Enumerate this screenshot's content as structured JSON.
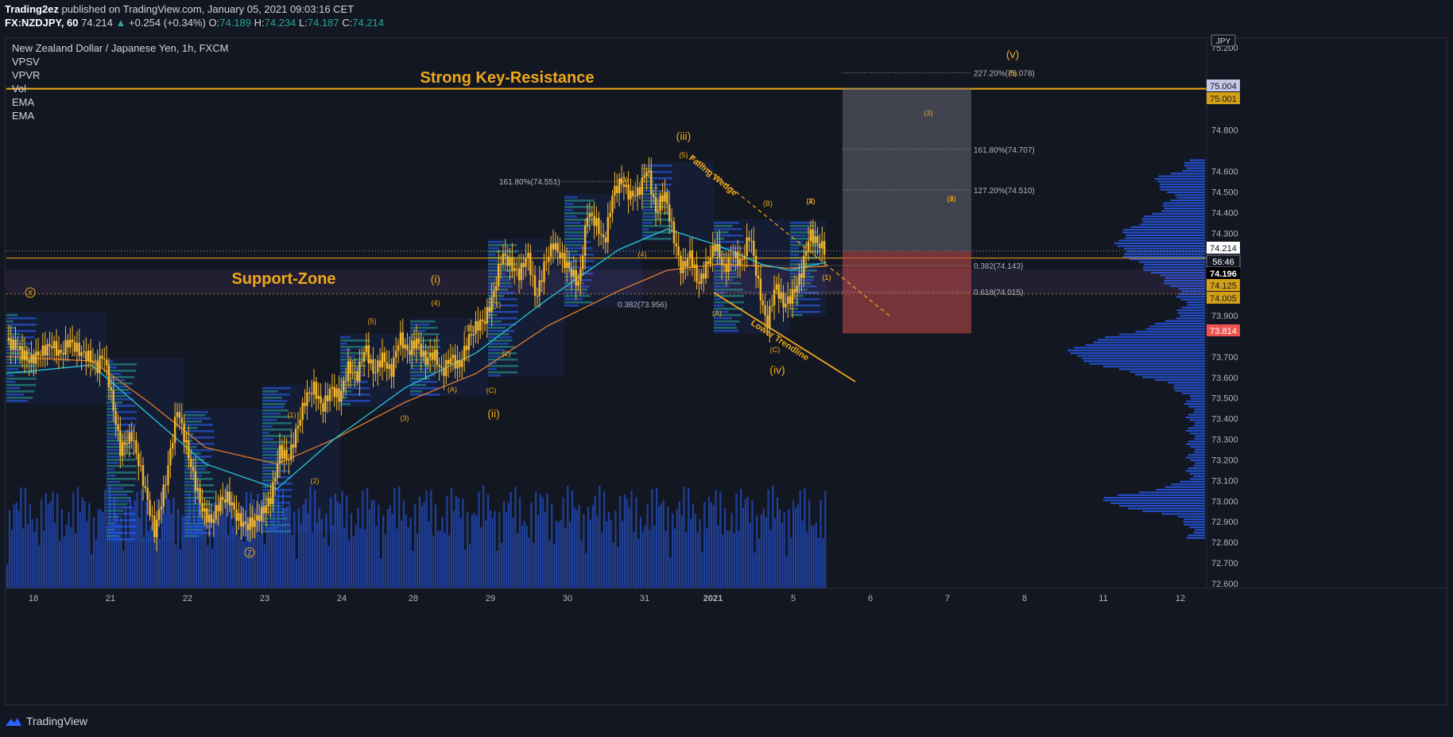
{
  "header": {
    "publisher": "Trading2ez",
    "published_text": "published on TradingView.com, January 05, 2021 09:03:16 CET",
    "symbol": "FX:NZDJPY, 60",
    "last": "74.214",
    "change": "+0.254 (+0.34%)",
    "open_label": "O:",
    "open": "74.189",
    "high_label": "H:",
    "high": "74.234",
    "low_label": "L:",
    "low": "74.187",
    "close_label": "C:",
    "close": "74.214"
  },
  "legend": {
    "title": "New Zealand Dollar / Japanese Yen, 1h, FXCM",
    "indicators": [
      "VPSV",
      "VPVR",
      "Vol",
      "EMA",
      "EMA"
    ]
  },
  "footer": {
    "brand": "TradingView"
  },
  "currency_label": "JPY",
  "colors": {
    "background": "#131722",
    "accent": "#f0a818",
    "candle": "#f5b72c",
    "volume": "#2962ff",
    "ema_fast": "#26c6da",
    "ema_slow": "#e0792b",
    "target_box": "#787b86",
    "stop_box": "#b54848",
    "current_price": "#ffffff",
    "stop_price": "#ef5350"
  },
  "chart_data": {
    "type": "line",
    "title": "New Zealand Dollar / Japanese Yen, 1h, FXCM",
    "y_range": [
      72.6,
      75.2
    ],
    "y_ticks": [
      {
        "value": 75.2,
        "label": "75.200"
      },
      {
        "value": 74.8,
        "label": "74.800"
      },
      {
        "value": 74.6,
        "label": "74.600"
      },
      {
        "value": 74.5,
        "label": "74.500"
      },
      {
        "value": 74.4,
        "label": "74.400"
      },
      {
        "value": 74.3,
        "label": "74.300"
      },
      {
        "value": 73.9,
        "label": "73.900"
      },
      {
        "value": 73.7,
        "label": "73.700"
      },
      {
        "value": 73.6,
        "label": "73.600"
      },
      {
        "value": 73.5,
        "label": "73.500"
      },
      {
        "value": 73.4,
        "label": "73.400"
      },
      {
        "value": 73.3,
        "label": "73.300"
      },
      {
        "value": 73.2,
        "label": "73.200"
      },
      {
        "value": 73.1,
        "label": "73.100"
      },
      {
        "value": 73.0,
        "label": "73.000"
      },
      {
        "value": 72.9,
        "label": "72.900"
      },
      {
        "value": 72.8,
        "label": "72.800"
      },
      {
        "value": 72.7,
        "label": "72.700"
      },
      {
        "value": 72.6,
        "label": "72.600"
      }
    ],
    "x_ticks": [
      "18",
      "21",
      "22",
      "23",
      "24",
      "28",
      "29",
      "30",
      "31",
      "2021",
      "5",
      "6",
      "7",
      "8",
      "11",
      "12"
    ],
    "price_badges": [
      {
        "value": 75.004,
        "label": "75.004",
        "style": "lavender"
      },
      {
        "value": 75.001,
        "label": "75.001",
        "style": "gold"
      },
      {
        "value": 74.214,
        "label": "74.214",
        "style": "white"
      },
      {
        "value": 74.18,
        "label": "56:46",
        "style": "countdown"
      },
      {
        "value": 74.196,
        "label": "74.196",
        "style": "dark"
      },
      {
        "value": 74.125,
        "label": "74.125",
        "style": "gold"
      },
      {
        "value": 74.005,
        "label": "74.005",
        "style": "gold"
      },
      {
        "value": 73.814,
        "label": "73.814",
        "style": "red"
      }
    ],
    "close_path": [
      {
        "x": 0,
        "y": 73.78
      },
      {
        "x": 4,
        "y": 73.74
      },
      {
        "x": 8,
        "y": 73.68
      },
      {
        "x": 12,
        "y": 73.72
      },
      {
        "x": 16,
        "y": 73.76
      },
      {
        "x": 19,
        "y": 73.71
      },
      {
        "x": 22,
        "y": 73.78
      },
      {
        "x": 26,
        "y": 73.72
      },
      {
        "x": 29,
        "y": 73.7
      },
      {
        "x": 32,
        "y": 73.65
      },
      {
        "x": 34,
        "y": 73.72
      },
      {
        "x": 36,
        "y": 73.58
      },
      {
        "x": 40,
        "y": 73.25
      },
      {
        "x": 44,
        "y": 73.32
      },
      {
        "x": 48,
        "y": 73.1
      },
      {
        "x": 52,
        "y": 72.85
      },
      {
        "x": 56,
        "y": 73.1
      },
      {
        "x": 60,
        "y": 73.45
      },
      {
        "x": 63,
        "y": 73.28
      },
      {
        "x": 66,
        "y": 73.1
      },
      {
        "x": 69,
        "y": 72.95
      },
      {
        "x": 72,
        "y": 72.9
      },
      {
        "x": 75,
        "y": 73.0
      },
      {
        "x": 78,
        "y": 73.02
      },
      {
        "x": 81,
        "y": 72.92
      },
      {
        "x": 84,
        "y": 72.88
      },
      {
        "x": 87,
        "y": 72.9
      },
      {
        "x": 90,
        "y": 72.95
      },
      {
        "x": 93,
        "y": 73.02
      },
      {
        "x": 96,
        "y": 73.25
      },
      {
        "x": 99,
        "y": 73.2
      },
      {
        "x": 102,
        "y": 73.35
      },
      {
        "x": 105,
        "y": 73.5
      },
      {
        "x": 108,
        "y": 73.55
      },
      {
        "x": 111,
        "y": 73.45
      },
      {
        "x": 114,
        "y": 73.55
      },
      {
        "x": 117,
        "y": 73.5
      },
      {
        "x": 120,
        "y": 73.65
      },
      {
        "x": 123,
        "y": 73.6
      },
      {
        "x": 126,
        "y": 73.75
      },
      {
        "x": 129,
        "y": 73.62
      },
      {
        "x": 132,
        "y": 73.7
      },
      {
        "x": 135,
        "y": 73.62
      },
      {
        "x": 138,
        "y": 73.8
      },
      {
        "x": 141,
        "y": 73.72
      },
      {
        "x": 144,
        "y": 73.78
      },
      {
        "x": 147,
        "y": 73.68
      },
      {
        "x": 150,
        "y": 73.72
      },
      {
        "x": 153,
        "y": 73.62
      },
      {
        "x": 156,
        "y": 73.7
      },
      {
        "x": 159,
        "y": 73.65
      },
      {
        "x": 162,
        "y": 73.78
      },
      {
        "x": 165,
        "y": 73.85
      },
      {
        "x": 168,
        "y": 73.88
      },
      {
        "x": 171,
        "y": 74.0
      },
      {
        "x": 174,
        "y": 74.2
      },
      {
        "x": 177,
        "y": 74.15
      },
      {
        "x": 180,
        "y": 74.1
      },
      {
        "x": 183,
        "y": 74.2
      },
      {
        "x": 186,
        "y": 73.98
      },
      {
        "x": 189,
        "y": 74.15
      },
      {
        "x": 192,
        "y": 74.25
      },
      {
        "x": 195,
        "y": 74.18
      },
      {
        "x": 198,
        "y": 74.12
      },
      {
        "x": 201,
        "y": 74.05
      },
      {
        "x": 204,
        "y": 74.4
      },
      {
        "x": 207,
        "y": 74.35
      },
      {
        "x": 210,
        "y": 74.25
      },
      {
        "x": 213,
        "y": 74.5
      },
      {
        "x": 216,
        "y": 74.55
      },
      {
        "x": 219,
        "y": 74.48
      },
      {
        "x": 222,
        "y": 74.5
      },
      {
        "x": 225,
        "y": 74.62
      },
      {
        "x": 228,
        "y": 74.4
      },
      {
        "x": 231,
        "y": 74.5
      },
      {
        "x": 234,
        "y": 74.3
      },
      {
        "x": 237,
        "y": 74.12
      },
      {
        "x": 240,
        "y": 74.2
      },
      {
        "x": 243,
        "y": 74.05
      },
      {
        "x": 246,
        "y": 74.15
      },
      {
        "x": 249,
        "y": 74.25
      },
      {
        "x": 252,
        "y": 74.12
      },
      {
        "x": 255,
        "y": 74.2
      },
      {
        "x": 258,
        "y": 74.15
      },
      {
        "x": 261,
        "y": 74.3
      },
      {
        "x": 264,
        "y": 74.05
      },
      {
        "x": 267,
        "y": 73.85
      },
      {
        "x": 270,
        "y": 74.05
      },
      {
        "x": 273,
        "y": 73.95
      },
      {
        "x": 276,
        "y": 74.0
      },
      {
        "x": 279,
        "y": 74.1
      },
      {
        "x": 282,
        "y": 74.3
      },
      {
        "x": 285,
        "y": 74.25
      },
      {
        "x": 288,
        "y": 74.214
      }
    ],
    "ema_fast": [
      {
        "x": 0,
        "y": 73.62
      },
      {
        "x": 30,
        "y": 73.66
      },
      {
        "x": 50,
        "y": 73.42
      },
      {
        "x": 70,
        "y": 73.18
      },
      {
        "x": 95,
        "y": 73.06
      },
      {
        "x": 115,
        "y": 73.3
      },
      {
        "x": 140,
        "y": 73.55
      },
      {
        "x": 165,
        "y": 73.72
      },
      {
        "x": 190,
        "y": 73.98
      },
      {
        "x": 215,
        "y": 74.22
      },
      {
        "x": 232,
        "y": 74.32
      },
      {
        "x": 250,
        "y": 74.24
      },
      {
        "x": 265,
        "y": 74.15
      },
      {
        "x": 275,
        "y": 74.12
      },
      {
        "x": 288,
        "y": 74.16
      }
    ],
    "ema_slow": [
      {
        "x": 0,
        "y": 73.7
      },
      {
        "x": 30,
        "y": 73.68
      },
      {
        "x": 50,
        "y": 73.48
      },
      {
        "x": 70,
        "y": 73.26
      },
      {
        "x": 95,
        "y": 73.18
      },
      {
        "x": 115,
        "y": 73.3
      },
      {
        "x": 140,
        "y": 73.48
      },
      {
        "x": 165,
        "y": 73.62
      },
      {
        "x": 190,
        "y": 73.85
      },
      {
        "x": 215,
        "y": 74.02
      },
      {
        "x": 232,
        "y": 74.12
      },
      {
        "x": 250,
        "y": 74.15
      },
      {
        "x": 265,
        "y": 74.14
      },
      {
        "x": 275,
        "y": 74.13
      },
      {
        "x": 288,
        "y": 74.14
      }
    ],
    "annotations": {
      "resistance": {
        "value": 75.001,
        "label": "Strong Key-Resistance"
      },
      "support": {
        "value": 74.125,
        "label": "Support-Zone"
      },
      "support_dotted": 74.005,
      "fib_levels": [
        {
          "value": 75.078,
          "label": "227.20%(75.078)"
        },
        {
          "value": 74.707,
          "label": "161.80%(74.707)"
        },
        {
          "value": 74.51,
          "label": "127.20%(74.510)"
        },
        {
          "value": 74.143,
          "label": "0.382(74.143)"
        },
        {
          "value": 74.015,
          "label": "0.618(74.015)"
        }
      ],
      "fib_left": [
        {
          "value": 74.551,
          "label": "161.80%(74.551)"
        },
        {
          "value": 73.956,
          "label": "0.382(73.956)"
        }
      ],
      "target_zone": [
        74.214,
        75.004
      ],
      "stop_zone": [
        73.814,
        74.214
      ],
      "trend_labels": [
        "Falling Wedge",
        "Lower Trendline"
      ],
      "wave_labels": [
        "(iii)",
        "(i)",
        "(ii)",
        "(iv)",
        "(v)",
        "(5)",
        "(3)",
        "(1)",
        "(2)",
        "(4)",
        "(A)",
        "(B)",
        "(C)",
        "(3)",
        "(4)",
        "(5)",
        "(1)",
        "(2)",
        "(A)",
        "(B)",
        "(C)",
        "(4)",
        "(5)",
        "(3)",
        "(3)",
        "(4)",
        "(1)",
        "(2)",
        "(1)",
        "(2)"
      ],
      "circle_labels": [
        "X",
        "Z"
      ]
    }
  }
}
